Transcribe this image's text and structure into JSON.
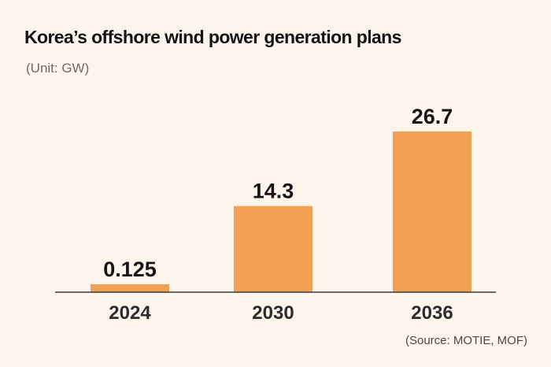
{
  "header": {
    "title": "Korea’s offshore wind power generation plans",
    "unit": "(Unit: GW)"
  },
  "footer": {
    "source": "(Source: MOTIE, MOF)"
  },
  "colors": {
    "background": "#fdf5ec",
    "bar": "#f2a054",
    "axis": "#3a3a3a"
  },
  "chart_data": {
    "type": "bar",
    "title": "Korea’s offshore wind power generation plans",
    "xlabel": "",
    "ylabel": "(Unit: GW)",
    "categories": [
      "2024",
      "2030",
      "2036"
    ],
    "values": [
      0.125,
      14.3,
      26.7
    ],
    "value_labels": [
      "0.125",
      "14.3",
      "26.7"
    ],
    "ylim": [
      0,
      26.7
    ],
    "grid": false,
    "legend": "none"
  }
}
